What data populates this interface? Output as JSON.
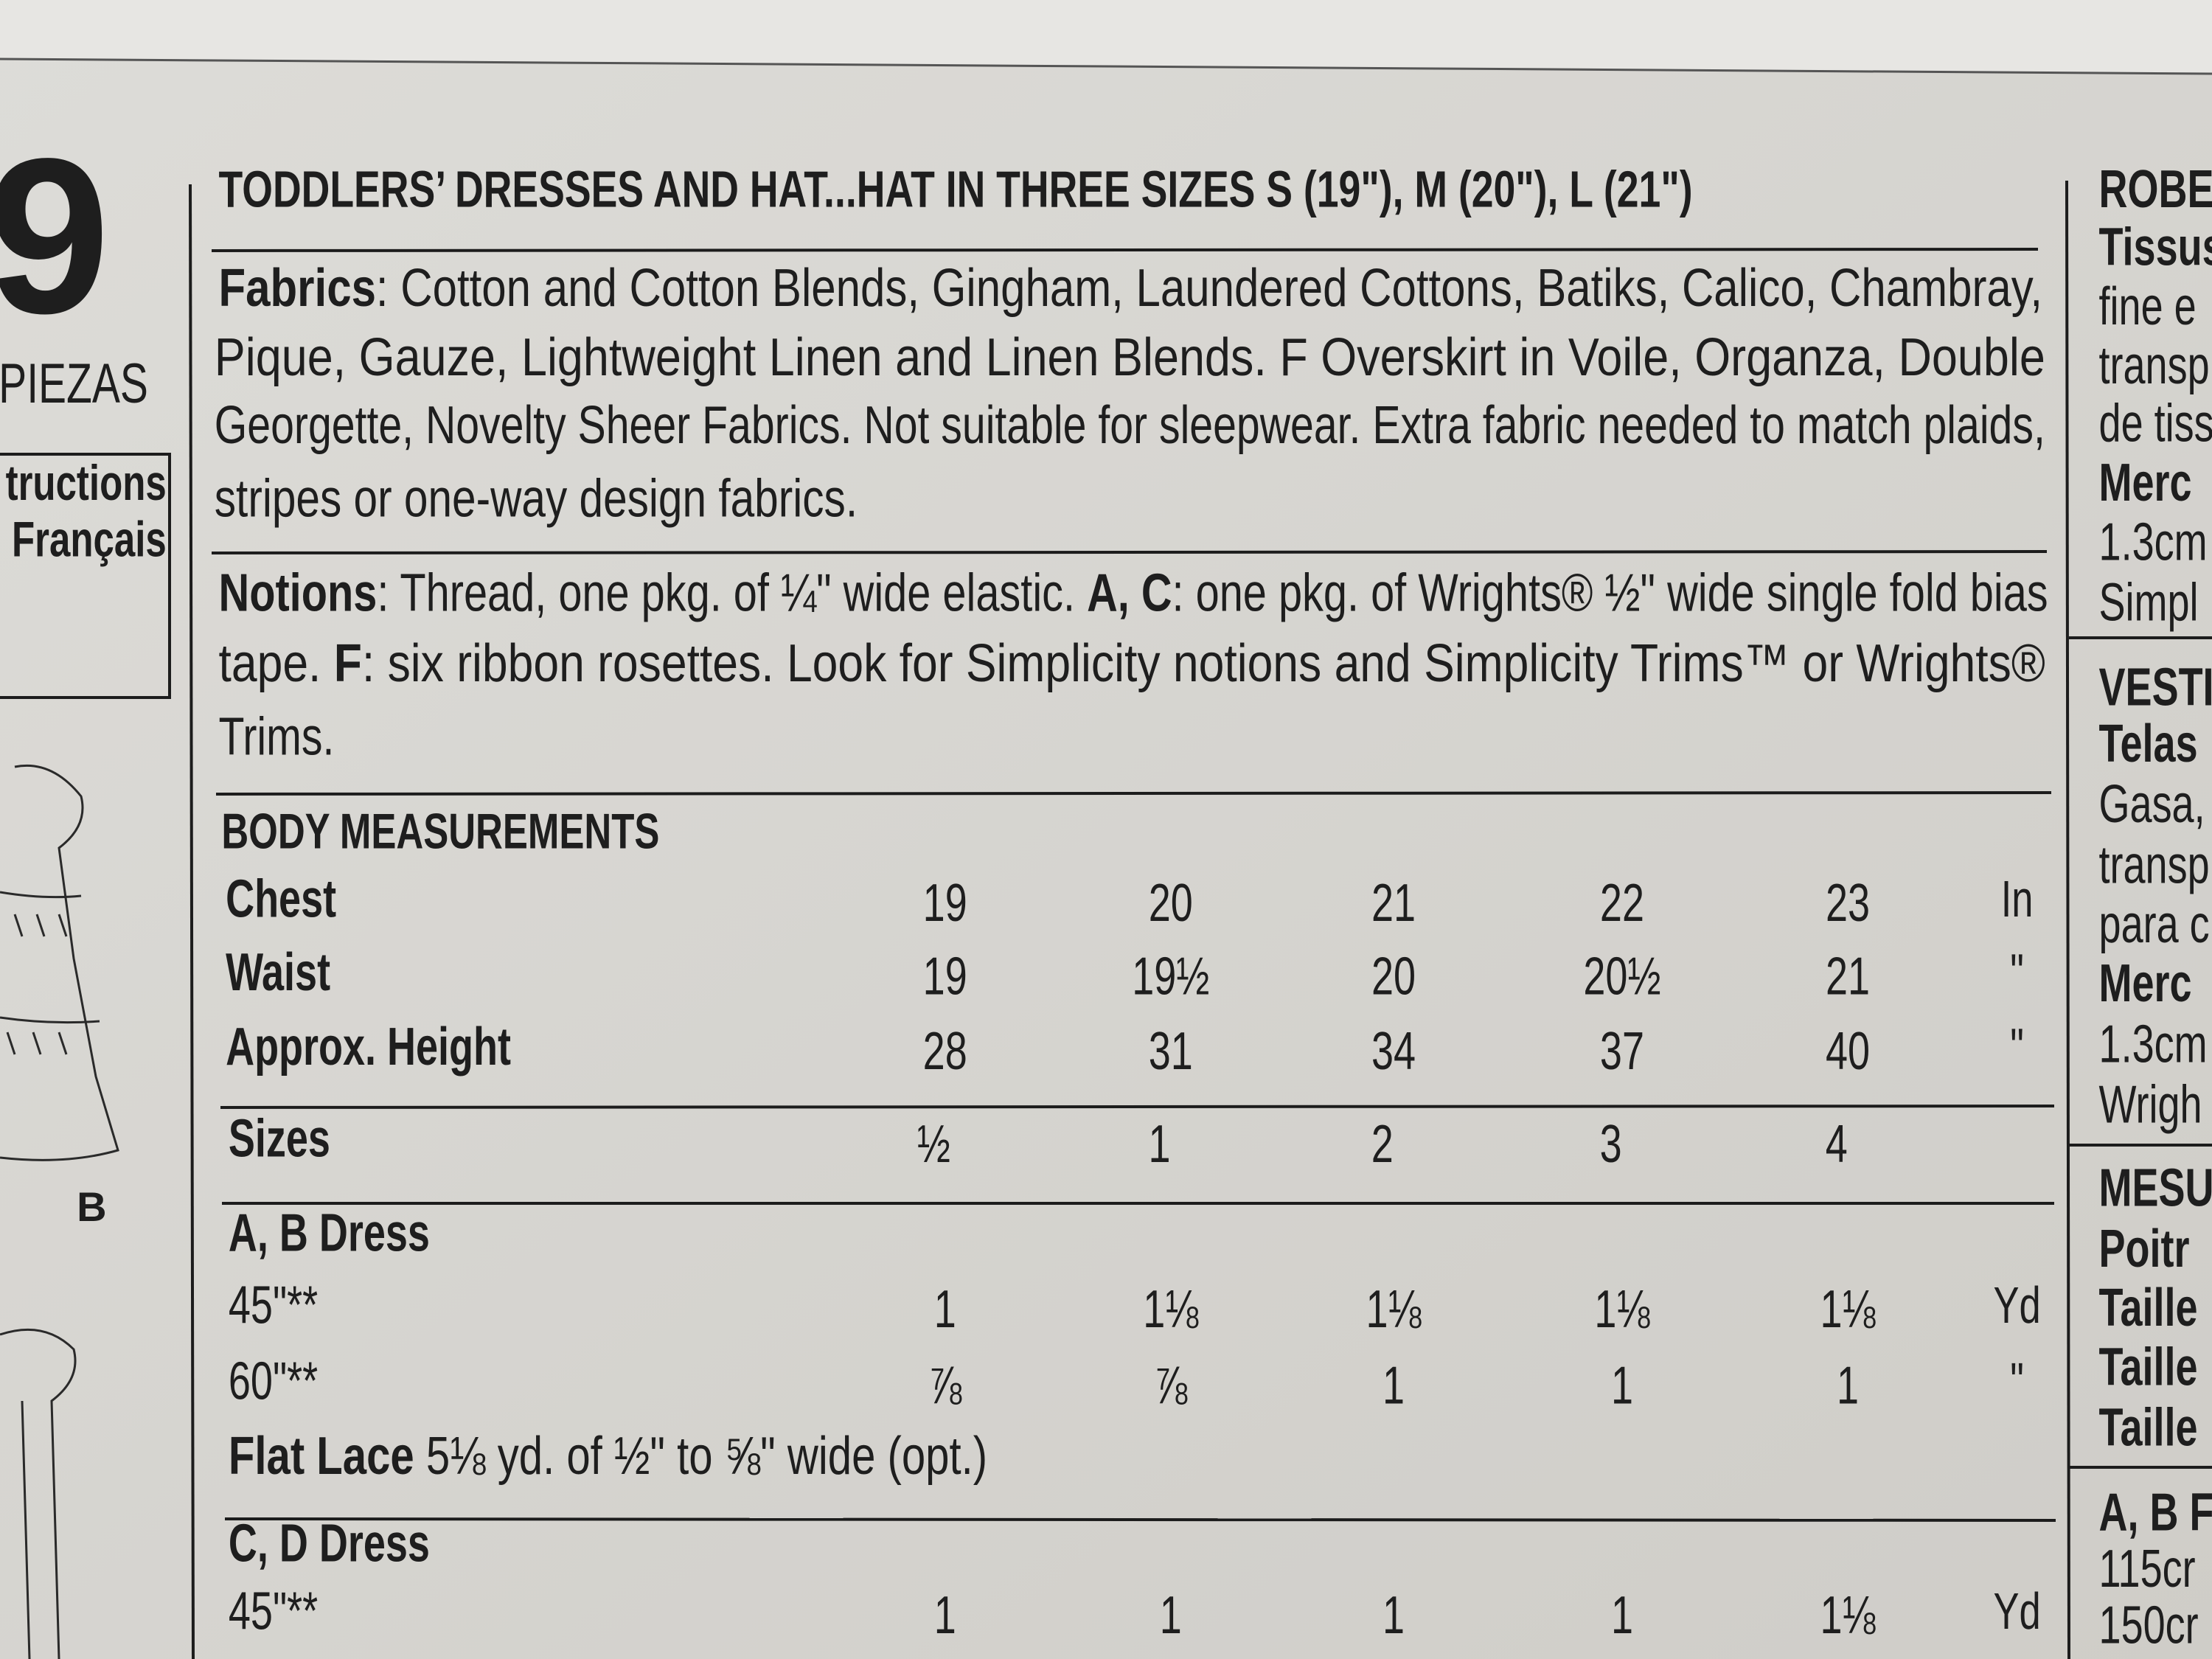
{
  "left_panel": {
    "number": "9",
    "pieces": "PIEZAS",
    "instructions": [
      "tructions",
      "Français"
    ],
    "view_label": "B"
  },
  "header": {
    "title": "TODDLERS’ DRESSES AND HAT...HAT IN THREE SIZES S (19\"), M (20\"), L (21\")"
  },
  "fabrics": {
    "lines": [
      [
        {
          "text": "Fabrics",
          "bold": true
        },
        {
          "text": ": Cotton and Cotton Blends, Gingham, Laundered Cottons, Batiks, Calico, Chambray,"
        }
      ],
      [
        {
          "text": "Pique, Gauze, Lightweight Linen and Linen Blends. F Overskirt in Voile, Organza, Double"
        }
      ],
      [
        {
          "text": "Georgette, Novelty Sheer Fabrics. Not suitable for sleepwear. Extra fabric needed to match plaids,"
        }
      ],
      [
        {
          "text": "stripes or one-way design fabrics."
        }
      ]
    ]
  },
  "notions": {
    "lines": [
      [
        {
          "text": "Notions",
          "bold": true
        },
        {
          "text": ": Thread, one pkg. of ¼\" wide elastic. "
        },
        {
          "text": "A, C",
          "bold": true
        },
        {
          "text": ": one pkg. of Wrights® ½\" wide single fold bias"
        }
      ],
      [
        {
          "text": "tape. "
        },
        {
          "text": "F",
          "bold": true
        },
        {
          "text": ": six ribbon rosettes. Look for Simplicity notions and Simplicity Trims™ or Wrights®"
        }
      ],
      [
        {
          "text": "Trims."
        }
      ]
    ]
  },
  "body_measurements": {
    "title": "BODY MEASUREMENTS",
    "rows": [
      {
        "label": "Chest",
        "values": [
          "19",
          "20",
          "21",
          "22",
          "23"
        ],
        "unit": "In"
      },
      {
        "label": "Waist",
        "values": [
          "19",
          "19½",
          "20",
          "20½",
          "21"
        ],
        "unit": "\""
      },
      {
        "label": "Approx. Height",
        "values": [
          "28",
          "31",
          "34",
          "37",
          "40"
        ],
        "unit": "\""
      }
    ]
  },
  "sizes": {
    "label": "Sizes",
    "values": [
      "½",
      "1",
      "2",
      "3",
      "4"
    ]
  },
  "yardage": [
    {
      "title": "A, B Dress",
      "rows": [
        {
          "label": "45\"**",
          "values": [
            "1",
            "1⅛",
            "1⅛",
            "1⅛",
            "1⅛"
          ],
          "unit": "Yd"
        },
        {
          "label": "60\"**",
          "values": [
            "⅞",
            "⅞",
            "1",
            "1",
            "1"
          ],
          "unit": "\""
        }
      ],
      "note": {
        "label": "Flat Lace",
        "text": " 5⅛ yd. of ½\" to ⅝\" wide (opt.)"
      }
    },
    {
      "title": "C, D Dress",
      "rows": [
        {
          "label": "45\"**",
          "values": [
            "1",
            "1",
            "1",
            "1",
            "1⅛"
          ],
          "unit": "Yd"
        }
      ]
    }
  ],
  "right_column": {
    "lines": [
      {
        "text": "ROBES",
        "bold": true
      },
      {
        "text": "Tissus",
        "bold": true
      },
      {
        "text": "fine e"
      },
      {
        "text": "transp"
      },
      {
        "text": "de tiss"
      },
      {
        "text": "Merc",
        "bold": true
      },
      {
        "text": "1.3cm"
      },
      {
        "text": "Simpl"
      },
      {
        "text": "VESTI",
        "bold": true
      },
      {
        "text": "Telas",
        "bold": true
      },
      {
        "text": "Gasa,"
      },
      {
        "text": "transp"
      },
      {
        "text": "para c"
      },
      {
        "text": "Merc",
        "bold": true
      },
      {
        "text": "1.3cm"
      },
      {
        "text": "Wrigh"
      },
      {
        "text": "MESU",
        "bold": true
      },
      {
        "text": "Poitr",
        "bold": true
      },
      {
        "text": "Taille",
        "bold": true
      },
      {
        "text": "Taille",
        "bold": true
      },
      {
        "text": "Taille",
        "bold": true
      },
      {
        "text": "A, B F",
        "bold": true
      },
      {
        "text": "115cr"
      },
      {
        "text": "150cr"
      }
    ]
  }
}
